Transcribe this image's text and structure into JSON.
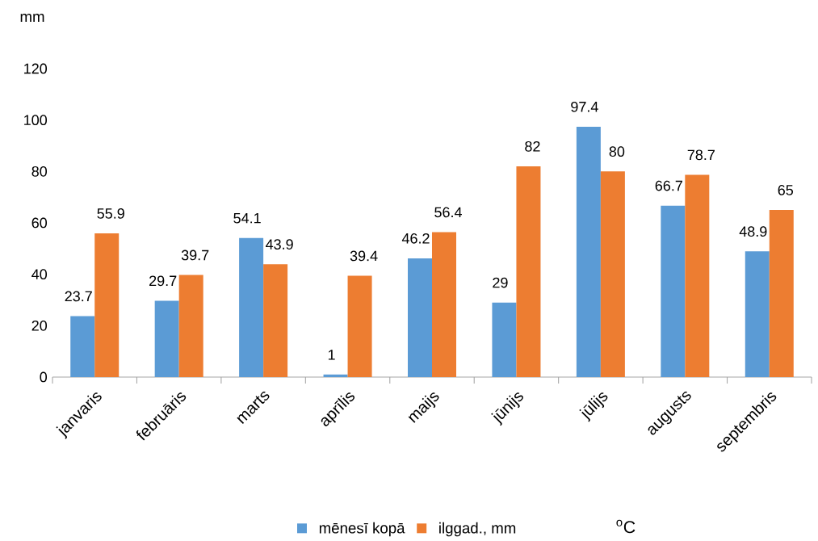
{
  "chart_data": {
    "type": "bar",
    "ylabel": "mm",
    "categories": [
      "janvaris",
      "februāris",
      "marts",
      "aprīlis",
      "maijs",
      "jūnijs",
      "jūlijs",
      "augusts",
      "septembris"
    ],
    "series": [
      {
        "name": "mēnesī kopā",
        "color": "#5b9bd5",
        "values": [
          23.7,
          29.7,
          54.1,
          1,
          46.2,
          29,
          97.4,
          66.7,
          48.9
        ]
      },
      {
        "name": "ilggad., mm",
        "color": "#ed7d31",
        "values": [
          55.9,
          39.7,
          43.9,
          39.4,
          56.4,
          82,
          80,
          78.7,
          65
        ]
      }
    ],
    "ylim": [
      0,
      120
    ],
    "yticks": [
      0,
      20,
      40,
      60,
      80,
      100,
      120
    ],
    "data_labels": true,
    "legend": "bottom",
    "grid": false,
    "annotations": [
      "$^{o}$C"
    ]
  }
}
